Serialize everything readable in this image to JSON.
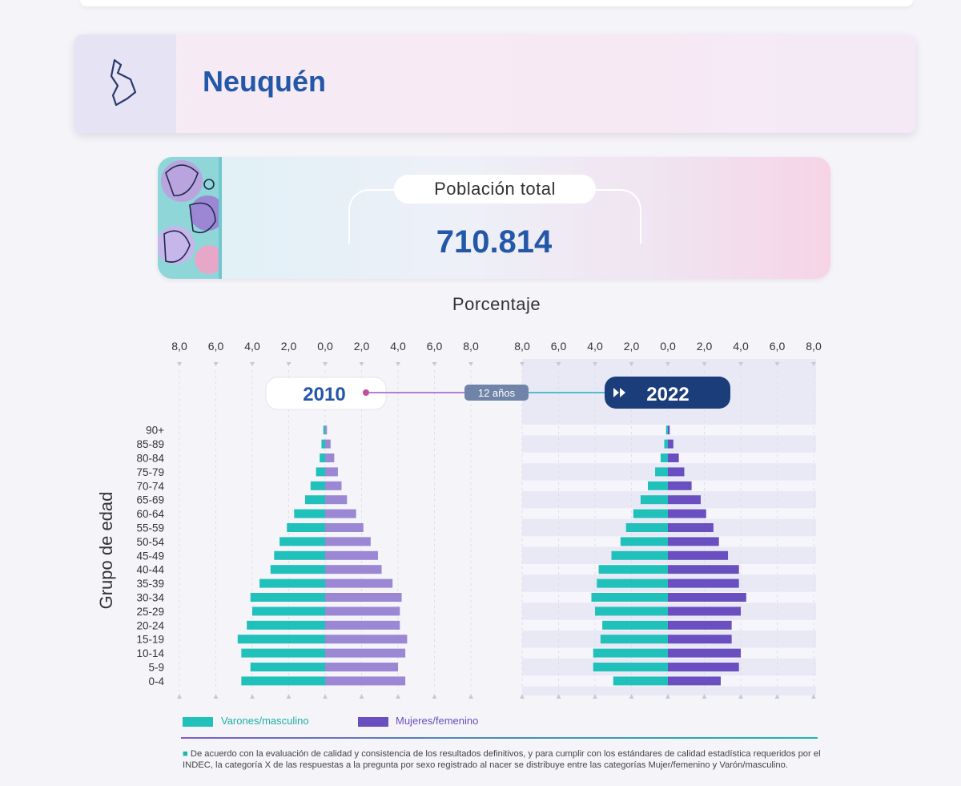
{
  "header": {
    "title": "Neuquén",
    "icon": "province-map-icon"
  },
  "population": {
    "label": "Población total",
    "value": "710.814"
  },
  "axis_title": "Porcentaje",
  "y_axis_label": "Grupo de edad",
  "years": {
    "left": "2010",
    "right": "2022",
    "gap_label": "12 años"
  },
  "legend": {
    "male": "Varones/masculino",
    "female": "Mujeres/femenino"
  },
  "colors": {
    "male": "#20c1ba",
    "female_2010": "#9b87d4",
    "female_2022": "#6a4fc0",
    "title": "#2357a8"
  },
  "footnote": "De acuerdo con la evaluación de calidad y consistencia de los resultados definitivos, y para cumplir con los estándares de calidad estadística requeridos por el INDEC, la categoría X de las respuestas a la pregunta por sexo registrado al nacer se distribuye entre las categorías Mujer/femenino y Varón/masculino.",
  "chart_data": {
    "type": "bar",
    "orientation": "horizontal",
    "subtype": "population-pyramid",
    "xlabel": "Porcentaje",
    "ylabel": "Grupo de edad",
    "tick_labels": [
      "8,0",
      "6,0",
      "4,0",
      "2,0",
      "0,0",
      "2,0",
      "4,0",
      "6,0",
      "8,0"
    ],
    "xlim": [
      -8,
      8
    ],
    "categories": [
      "90+",
      "85-89",
      "80-84",
      "75-79",
      "70-74",
      "65-69",
      "60-64",
      "55-59",
      "50-54",
      "45-49",
      "40-44",
      "35-39",
      "30-34",
      "25-29",
      "20-24",
      "15-19",
      "10-14",
      "5-9",
      "0-4"
    ],
    "panels": [
      {
        "year": "2010",
        "series": [
          {
            "name": "Varones/masculino",
            "values": [
              0.1,
              0.2,
              0.3,
              0.5,
              0.8,
              1.1,
              1.7,
              2.1,
              2.5,
              2.8,
              3.0,
              3.6,
              4.1,
              4.0,
              4.3,
              4.8,
              4.6,
              4.1,
              4.6
            ]
          },
          {
            "name": "Mujeres/femenino",
            "values": [
              0.1,
              0.3,
              0.5,
              0.7,
              0.9,
              1.2,
              1.7,
              2.1,
              2.5,
              2.9,
              3.1,
              3.7,
              4.2,
              4.1,
              4.1,
              4.5,
              4.4,
              4.0,
              4.4
            ]
          }
        ]
      },
      {
        "year": "2022",
        "series": [
          {
            "name": "Varones/masculino",
            "values": [
              0.1,
              0.2,
              0.4,
              0.7,
              1.1,
              1.5,
              1.9,
              2.3,
              2.6,
              3.1,
              3.8,
              3.9,
              4.2,
              4.0,
              3.6,
              3.7,
              4.1,
              4.1,
              3.0
            ]
          },
          {
            "name": "Mujeres/femenino",
            "values": [
              0.1,
              0.3,
              0.6,
              0.9,
              1.3,
              1.8,
              2.1,
              2.5,
              2.8,
              3.3,
              3.9,
              3.9,
              4.3,
              4.0,
              3.5,
              3.5,
              4.0,
              3.9,
              2.9
            ]
          }
        ]
      }
    ]
  }
}
